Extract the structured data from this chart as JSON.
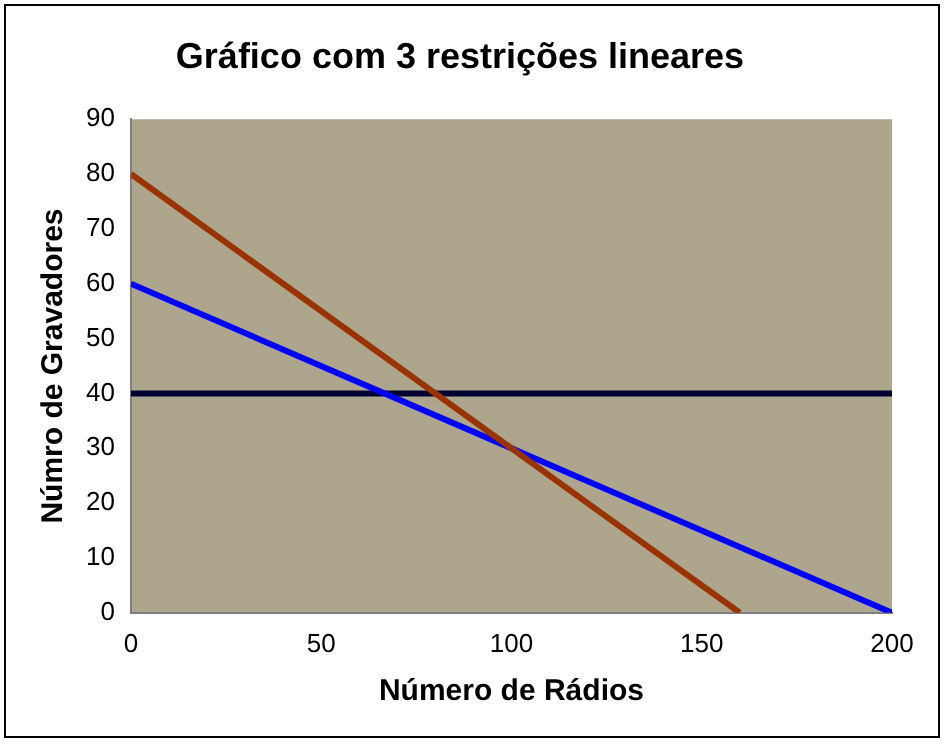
{
  "chart_data": {
    "type": "line",
    "title": "Gráfico com 3 restrições lineares",
    "xlabel": "Número de Rádios",
    "ylabel": "Númro de Gravadores",
    "series": [
      {
        "color": "#993300",
        "x": [
          0,
          160
        ],
        "values": [
          80,
          0
        ]
      },
      {
        "color": "#0000ff",
        "x": [
          0,
          200
        ],
        "values": [
          60,
          0
        ]
      },
      {
        "color": "#000033",
        "x": [
          0,
          200
        ],
        "values": [
          40,
          40
        ]
      }
    ],
    "xlim": [
      0,
      200
    ],
    "xticks": [
      0,
      50,
      100,
      150,
      200
    ],
    "ylim": [
      0,
      90
    ],
    "yticks": [
      0,
      10,
      20,
      30,
      40,
      50,
      60,
      70,
      80,
      90
    ],
    "grid": false,
    "legend": false,
    "marker": "none",
    "line_style": "solid"
  }
}
